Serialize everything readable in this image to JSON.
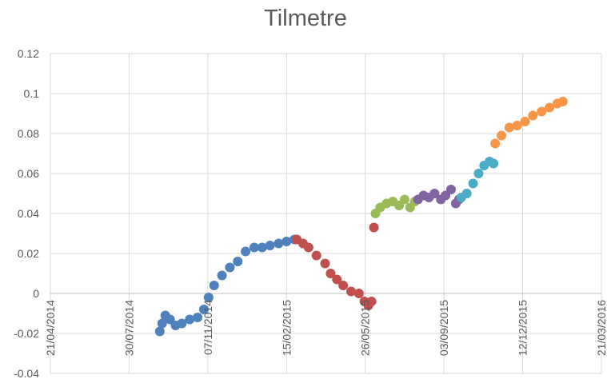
{
  "chart_data": {
    "type": "scatter",
    "title": "Tilmetre",
    "xlim": [
      "2014-04-21",
      "2016-03-21"
    ],
    "xticks": [
      {
        "value": "2014-04-21",
        "label": "21/04/2014"
      },
      {
        "value": "2014-07-30",
        "label": "30/07/2014"
      },
      {
        "value": "2014-11-07",
        "label": "07/11/2014"
      },
      {
        "value": "2015-02-15",
        "label": "15/02/2015"
      },
      {
        "value": "2015-05-26",
        "label": "26/05/2015"
      },
      {
        "value": "2015-09-03",
        "label": "03/09/2015"
      },
      {
        "value": "2015-12-12",
        "label": "12/12/2015"
      },
      {
        "value": "2016-03-21",
        "label": "21/03/2016"
      }
    ],
    "ylim": [
      -0.04,
      0.12
    ],
    "yticks": [
      -0.04,
      -0.02,
      0,
      0.02,
      0.04,
      0.06,
      0.08,
      0.1,
      0.12
    ],
    "grid": true,
    "series": [
      {
        "color": "#4f81bd",
        "x": [
          "2014-09-07",
          "2014-09-10",
          "2014-09-14",
          "2014-09-20",
          "2014-09-27",
          "2014-10-05",
          "2014-10-15",
          "2014-10-25",
          "2014-11-02",
          "2014-11-08",
          "2014-11-15",
          "2014-11-25",
          "2014-12-05",
          "2014-12-15",
          "2014-12-25",
          "2015-01-05",
          "2015-01-15",
          "2015-01-25",
          "2015-02-05",
          "2015-02-15",
          "2015-02-25"
        ],
        "values": [
          -0.019,
          -0.015,
          -0.011,
          -0.013,
          -0.016,
          -0.015,
          -0.013,
          -0.012,
          -0.008,
          -0.002,
          0.004,
          0.009,
          0.013,
          0.016,
          0.021,
          0.023,
          0.023,
          0.024,
          0.025,
          0.026,
          0.027
        ]
      },
      {
        "color": "#c0504d",
        "x": [
          "2015-02-28",
          "2015-03-08",
          "2015-03-15",
          "2015-03-25",
          "2015-04-05",
          "2015-04-12",
          "2015-04-20",
          "2015-04-28",
          "2015-05-08",
          "2015-05-18",
          "2015-05-25",
          "2015-05-30",
          "2015-06-03",
          "2015-06-06"
        ],
        "values": [
          0.027,
          0.025,
          0.023,
          0.019,
          0.015,
          0.01,
          0.007,
          0.004,
          0.001,
          0.0,
          -0.004,
          -0.006,
          -0.004,
          0.033
        ]
      },
      {
        "color": "#9bbb59",
        "x": [
          "2015-06-08",
          "2015-06-14",
          "2015-06-22",
          "2015-06-30",
          "2015-07-08",
          "2015-07-15",
          "2015-07-22",
          "2015-07-28"
        ],
        "values": [
          0.04,
          0.043,
          0.045,
          0.046,
          0.044,
          0.047,
          0.043,
          0.046
        ]
      },
      {
        "color": "#8064a2",
        "x": [
          "2015-08-01",
          "2015-08-08",
          "2015-08-15",
          "2015-08-22",
          "2015-08-30",
          "2015-09-05",
          "2015-09-12",
          "2015-09-18",
          "2015-09-22"
        ],
        "values": [
          0.047,
          0.049,
          0.048,
          0.05,
          0.047,
          0.049,
          0.052,
          0.045,
          0.047
        ]
      },
      {
        "color": "#4bacc6",
        "x": [
          "2015-09-25",
          "2015-10-02",
          "2015-10-10",
          "2015-10-17",
          "2015-10-24",
          "2015-10-31",
          "2015-11-05"
        ],
        "values": [
          0.048,
          0.05,
          0.055,
          0.06,
          0.064,
          0.066,
          0.065
        ]
      },
      {
        "color": "#f79646",
        "x": [
          "2015-11-07",
          "2015-11-15",
          "2015-11-25",
          "2015-12-05",
          "2015-12-15",
          "2015-12-25",
          "2016-01-05",
          "2016-01-15",
          "2016-01-25",
          "2016-02-01"
        ],
        "values": [
          0.075,
          0.079,
          0.083,
          0.084,
          0.086,
          0.089,
          0.091,
          0.093,
          0.095,
          0.096
        ]
      }
    ]
  }
}
